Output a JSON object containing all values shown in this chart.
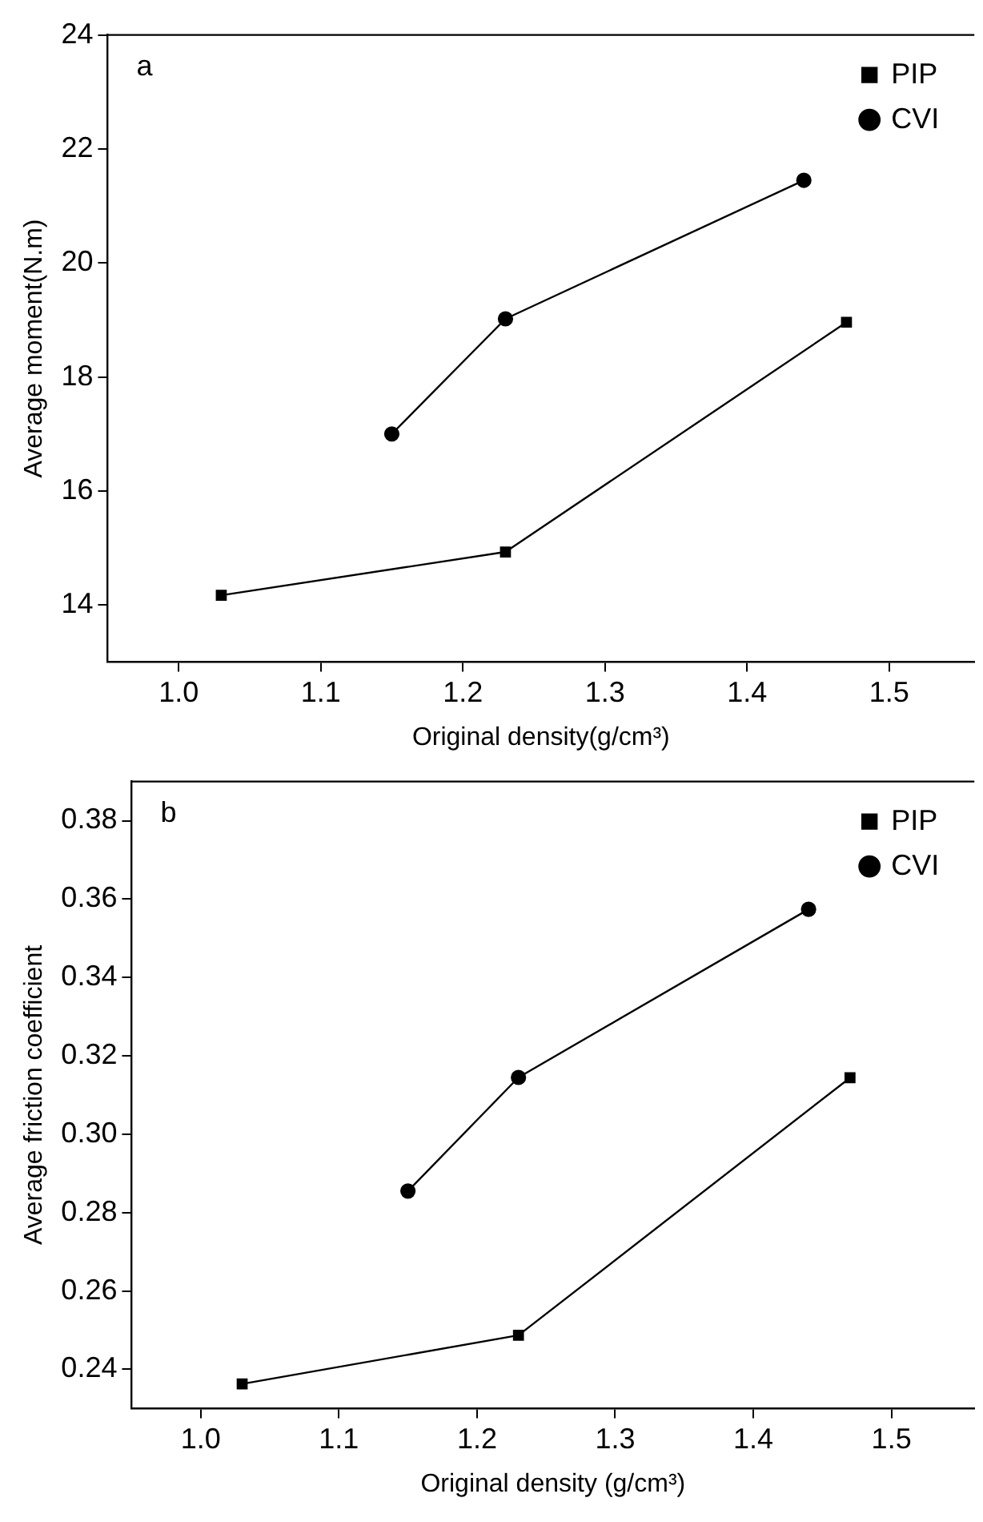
{
  "chart_data": [
    {
      "type": "line",
      "xlabel": "Original density(g/cm³)",
      "ylabel": "Average moment(N.m)",
      "annotations": [
        "a"
      ],
      "xlim": [
        0.95,
        1.56
      ],
      "xticks": [
        {
          "value": 1,
          "label": "1.0"
        },
        1.1,
        1.2,
        1.3,
        1.4,
        1.5
      ],
      "ylim": [
        13,
        24
      ],
      "yticks": [
        14,
        16,
        18,
        20,
        22,
        24
      ],
      "grid": false,
      "legend": "top right",
      "line_style": "solid",
      "series": [
        {
          "name": "PIP",
          "color": "#000000",
          "marker": "square",
          "x": [
            1.03,
            1.23,
            1.47
          ],
          "values": [
            14.17,
            14.93,
            18.96
          ]
        },
        {
          "name": "CVI",
          "color": "#000000",
          "marker": "circle",
          "x": [
            1.15,
            1.23,
            1.44
          ],
          "values": [
            17.0,
            19.02,
            21.45
          ]
        }
      ]
    },
    {
      "type": "line",
      "xlabel": "Original density (g/cm³)",
      "ylabel": "Average friction coefficient",
      "annotations": [
        "b"
      ],
      "xlim": [
        0.95,
        1.56
      ],
      "xticks": [
        {
          "value": 1,
          "label": "1.0"
        },
        1.1,
        1.2,
        1.3,
        1.4,
        1.5
      ],
      "ylim": [
        0.23,
        0.39
      ],
      "yticks": [
        0.24,
        0.26,
        0.28,
        {
          "value": 0.3,
          "label": "0.30"
        },
        0.32,
        0.34,
        0.36,
        0.38
      ],
      "grid": false,
      "legend": "top right",
      "line_style": "solid",
      "series": [
        {
          "name": "PIP",
          "color": "#000000",
          "marker": "square",
          "x": [
            1.03,
            1.23,
            1.47
          ],
          "values": [
            0.2363,
            0.2487,
            0.3144
          ]
        },
        {
          "name": "CVI",
          "color": "#000000",
          "marker": "circle",
          "x": [
            1.15,
            1.23,
            1.44
          ],
          "values": [
            0.2855,
            0.3145,
            0.3574
          ]
        }
      ]
    }
  ]
}
